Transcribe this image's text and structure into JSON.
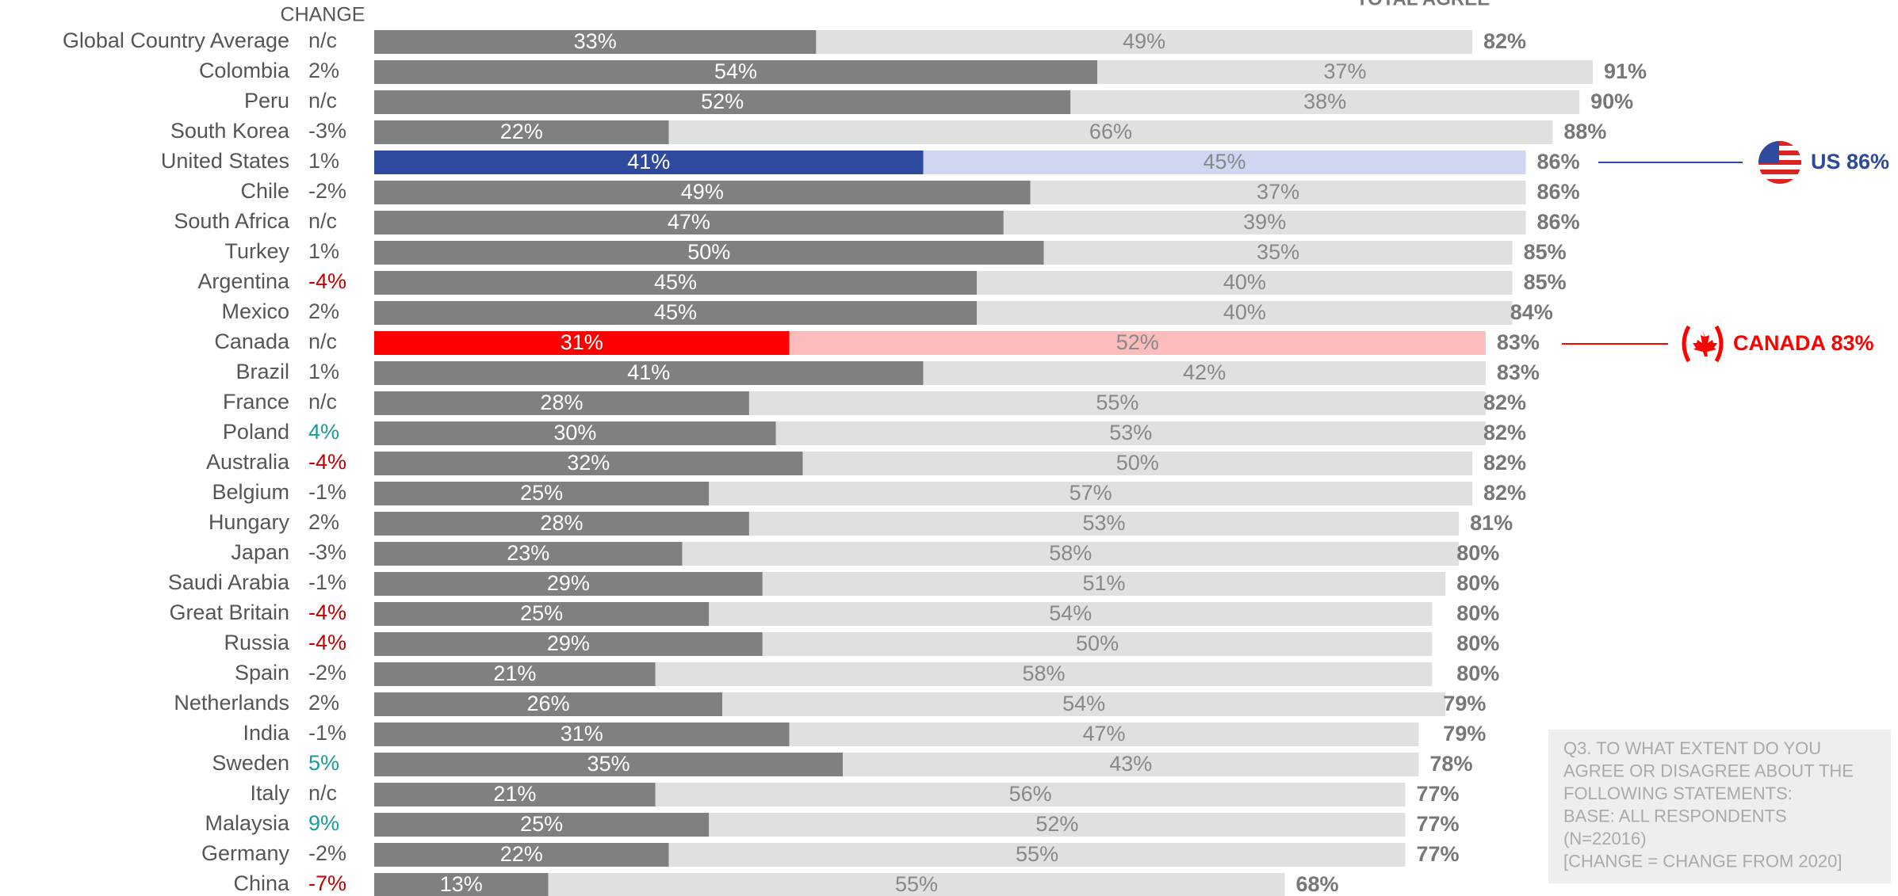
{
  "chart_data": {
    "type": "stacked-bar-horizontal",
    "title": "TOTAL AGREE",
    "change_header": "CHANGE",
    "categories": [
      "Global Country Average",
      "Colombia",
      "Peru",
      "South Korea",
      "United States",
      "Chile",
      "South Africa",
      "Turkey",
      "Argentina",
      "Mexico",
      "Canada",
      "Brazil",
      "France",
      "Poland",
      "Australia",
      "Belgium",
      "Hungary",
      "Japan",
      "Saudi Arabia",
      "Great Britain",
      "Russia",
      "Spain",
      "Netherlands",
      "India",
      "Sweden",
      "Italy",
      "Malaysia",
      "Germany",
      "China"
    ],
    "changes": [
      "n/c",
      "2%",
      "n/c",
      "-3%",
      "1%",
      "-2%",
      "n/c",
      "1%",
      "-4%",
      "2%",
      "n/c",
      "1%",
      "n/c",
      "4%",
      "-4%",
      "-1%",
      "2%",
      "-3%",
      "-1%",
      "-4%",
      "-4%",
      "-2%",
      "2%",
      "-1%",
      "5%",
      "n/c",
      "9%",
      "-2%",
      "-7%"
    ],
    "change_colors": [
      "#595959",
      "#595959",
      "#595959",
      "#595959",
      "#595959",
      "#595959",
      "#595959",
      "#595959",
      "#c00000",
      "#595959",
      "#595959",
      "#595959",
      "#595959",
      "#1a9a9a",
      "#c00000",
      "#595959",
      "#595959",
      "#595959",
      "#595959",
      "#c00000",
      "#c00000",
      "#595959",
      "#595959",
      "#595959",
      "#1a9a9a",
      "#595959",
      "#1a9a9a",
      "#595959",
      "#c00000"
    ],
    "series": [
      {
        "values": [
          33,
          54,
          52,
          22,
          41,
          49,
          47,
          50,
          45,
          45,
          31,
          41,
          28,
          30,
          32,
          25,
          28,
          23,
          29,
          25,
          29,
          21,
          26,
          31,
          35,
          21,
          25,
          22,
          13
        ],
        "value_labels": [
          "33%",
          "54%",
          "52%",
          "22%",
          "41%",
          "49%",
          "47%",
          "50%",
          "45%",
          "45%",
          "31%",
          "41%",
          "28%",
          "30%",
          "32%",
          "25%",
          "28%",
          "23%",
          "29%",
          "25%",
          "29%",
          "21%",
          "26%",
          "31%",
          "35%",
          "21%",
          "25%",
          "22%",
          "13%"
        ],
        "colors": [
          "#808080",
          "#808080",
          "#808080",
          "#808080",
          "#2e4a9e",
          "#808080",
          "#808080",
          "#808080",
          "#808080",
          "#808080",
          "#ff0000",
          "#808080",
          "#808080",
          "#808080",
          "#808080",
          "#808080",
          "#808080",
          "#808080",
          "#808080",
          "#808080",
          "#808080",
          "#808080",
          "#808080",
          "#808080",
          "#808080",
          "#808080",
          "#808080",
          "#808080",
          "#808080"
        ]
      },
      {
        "values": [
          49,
          37,
          38,
          66,
          45,
          37,
          39,
          35,
          40,
          40,
          52,
          42,
          55,
          53,
          50,
          57,
          53,
          58,
          51,
          54,
          50,
          58,
          54,
          47,
          43,
          56,
          52,
          55,
          55
        ],
        "value_labels": [
          "49%",
          "37%",
          "38%",
          "66%",
          "45%",
          "37%",
          "39%",
          "35%",
          "40%",
          "40%",
          "52%",
          "42%",
          "55%",
          "53%",
          "50%",
          "57%",
          "53%",
          "58%",
          "51%",
          "54%",
          "50%",
          "58%",
          "54%",
          "47%",
          "43%",
          "56%",
          "52%",
          "55%",
          "55%"
        ],
        "colors": [
          "#e0e0e0",
          "#e0e0e0",
          "#e0e0e0",
          "#e0e0e0",
          "#cfd6f2",
          "#e0e0e0",
          "#e0e0e0",
          "#e0e0e0",
          "#e0e0e0",
          "#e0e0e0",
          "#fbbcbc",
          "#e0e0e0",
          "#e0e0e0",
          "#e0e0e0",
          "#e0e0e0",
          "#e0e0e0",
          "#e0e0e0",
          "#e0e0e0",
          "#e0e0e0",
          "#e0e0e0",
          "#e0e0e0",
          "#e0e0e0",
          "#e0e0e0",
          "#e0e0e0",
          "#e0e0e0",
          "#e0e0e0",
          "#e0e0e0",
          "#e0e0e0",
          "#e0e0e0"
        ]
      }
    ],
    "totals": [
      82,
      91,
      90,
      88,
      86,
      86,
      86,
      85,
      85,
      84,
      83,
      83,
      82,
      82,
      82,
      82,
      81,
      80,
      80,
      80,
      80,
      80,
      79,
      79,
      78,
      77,
      77,
      77,
      68
    ],
    "total_labels": [
      "82%",
      "91%",
      "90%",
      "88%",
      "86%",
      "86%",
      "86%",
      "85%",
      "85%",
      "84%",
      "83%",
      "83%",
      "82%",
      "82%",
      "82%",
      "82%",
      "81%",
      "80%",
      "80%",
      "80%",
      "80%",
      "80%",
      "79%",
      "79%",
      "78%",
      "77%",
      "77%",
      "77%",
      "68%"
    ],
    "xlim": [
      0,
      100
    ],
    "annotations": [
      "US 86%",
      "CANADA 83%"
    ],
    "note": [
      "Q3. TO WHAT EXTENT DO YOU",
      "AGREE OR DISAGREE ABOUT THE",
      "FOLLOWING STATEMENTS:",
      "BASE: ALL RESPONDENTS",
      "(N=22016)",
      "[CHANGE = CHANGE FROM 2020]"
    ]
  }
}
